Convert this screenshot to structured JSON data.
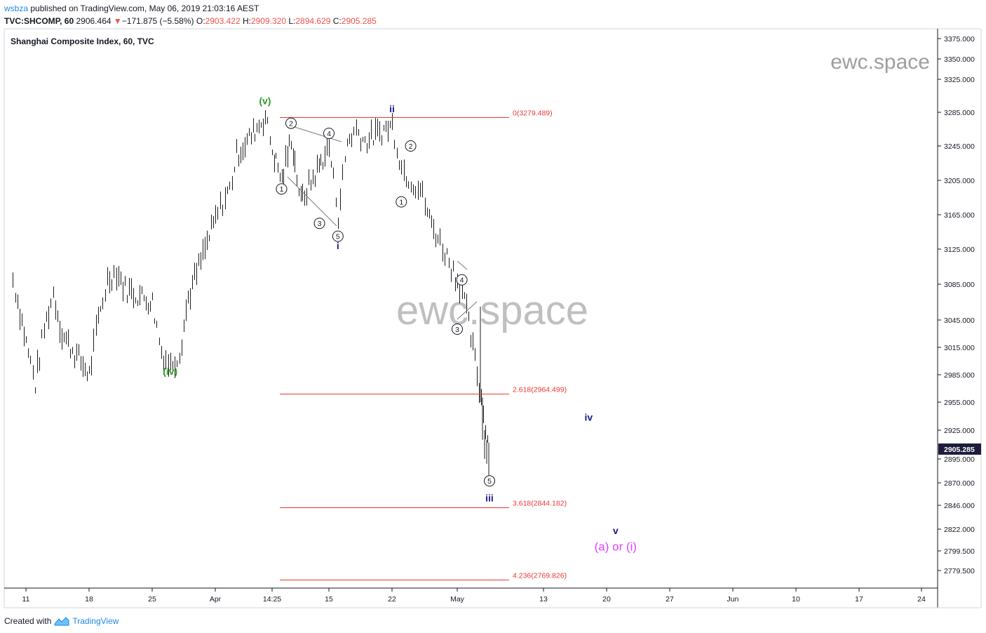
{
  "header": {
    "user": "wsbza",
    "published_text": "published on TradingView.com, May 06, 2019 21:03:16 AEST",
    "symbol": "TVC:SHCOMP, 60",
    "last": "2906.464",
    "change_arrow": "▼",
    "change": "−171.875 (−5.58%)",
    "o_label": "O:",
    "o_value": "2903.422",
    "h_label": "H:",
    "h_value": "2909.320",
    "l_label": "L:",
    "l_value": "2894.629",
    "c_label": "C:",
    "c_value": "2905.285"
  },
  "chart_title": "Shanghai Composite Index, 60, TVC",
  "watermark_small": "ewc.space",
  "watermark_large": "ewc.space",
  "footer": {
    "created_with": "Created with",
    "brand": "TradingView"
  },
  "colors": {
    "candle": "#1c1c1c",
    "fib_line": "#e53935",
    "wave_green": "#2e9e2e",
    "wave_navy": "#1a1a8c",
    "magenta": "#e040fb",
    "last_price_bg": "#1c1c3a"
  },
  "chart_data": {
    "type": "candlestick",
    "price_axis": {
      "ticks": [
        3375,
        3350,
        3325,
        3285,
        3245,
        3205,
        3165,
        3125,
        3085,
        3045,
        3015,
        2985,
        2955,
        2925,
        2895,
        2870,
        2846,
        2822,
        2799.5,
        2779.5
      ],
      "tick_labels": [
        "3375.000",
        "3350.000",
        "3325.000",
        "3285.000",
        "3245.000",
        "3205.000",
        "3165.000",
        "3125.000",
        "3085.000",
        "3045.000",
        "3015.000",
        "2985.000",
        "2955.000",
        "2925.000",
        "2895.000",
        "2870.000",
        "2846.000",
        "2822.000",
        "2799.500",
        "2779.500"
      ],
      "last_price_label": "2905.285",
      "last_price": 2905.285
    },
    "time_axis": {
      "labels": [
        "11",
        "18",
        "25",
        "Apr",
        "14:25",
        "15",
        "22",
        "May",
        "13",
        "20",
        "27",
        "Jun",
        "10",
        "17",
        "24"
      ],
      "label_dates": [
        "2019-03-11",
        "2019-03-18",
        "2019-03-25",
        "2019-04-01",
        "2019-04-09",
        "2019-04-15",
        "2019-04-22",
        "2019-04-29",
        "2019-05-13",
        "2019-05-20",
        "2019-05-27",
        "2019-06-03",
        "2019-06-10",
        "2019-06-17",
        "2019-06-24"
      ]
    },
    "price_path": [
      {
        "date": "2019-03-08",
        "price": 3090
      },
      {
        "date": "2019-03-11",
        "price": 3020
      },
      {
        "date": "2019-03-12",
        "price": 2975
      },
      {
        "date": "2019-03-13",
        "price": 3035
      },
      {
        "date": "2019-03-14",
        "price": 3075
      },
      {
        "date": "2019-03-15",
        "price": 3030
      },
      {
        "date": "2019-03-18",
        "price": 2985
      },
      {
        "date": "2019-03-19",
        "price": 3045
      },
      {
        "date": "2019-03-20",
        "price": 3090
      },
      {
        "date": "2019-03-21",
        "price": 3100
      },
      {
        "date": "2019-03-22",
        "price": 3080
      },
      {
        "date": "2019-03-25",
        "price": 3065
      },
      {
        "date": "2019-03-26",
        "price": 3010
      },
      {
        "date": "2019-03-27",
        "price": 2995
      },
      {
        "date": "2019-03-28",
        "price": 3010
      },
      {
        "date": "2019-03-29",
        "price": 3070
      },
      {
        "date": "2019-04-01",
        "price": 3160
      },
      {
        "date": "2019-04-02",
        "price": 3180
      },
      {
        "date": "2019-04-03",
        "price": 3195
      },
      {
        "date": "2019-04-04",
        "price": 3235
      },
      {
        "date": "2019-04-08",
        "price": 3280
      },
      {
        "date": "2019-04-09",
        "price": 3240
      },
      {
        "date": "2019-04-10",
        "price": 3205
      },
      {
        "date": "2019-04-11",
        "price": 3255
      },
      {
        "date": "2019-04-12",
        "price": 3180
      },
      {
        "date": "2019-04-15",
        "price": 3245
      },
      {
        "date": "2019-04-16",
        "price": 3165
      },
      {
        "date": "2019-04-17",
        "price": 3250
      },
      {
        "date": "2019-04-18",
        "price": 3265
      },
      {
        "date": "2019-04-19",
        "price": 3250
      },
      {
        "date": "2019-04-22",
        "price": 3270
      },
      {
        "date": "2019-04-23",
        "price": 3220
      },
      {
        "date": "2019-04-24",
        "price": 3205
      },
      {
        "date": "2019-04-25",
        "price": 3195
      },
      {
        "date": "2019-04-26",
        "price": 3160
      },
      {
        "date": "2019-04-29",
        "price": 3090
      },
      {
        "date": "2019-04-30",
        "price": 3080
      },
      {
        "date": "2019-05-06",
        "price": 2905
      }
    ],
    "fib_levels": [
      {
        "label": "0(3279.489)",
        "value": 3279.489
      },
      {
        "label": "2.618(2964.499)",
        "value": 2964.499
      },
      {
        "label": "3.618(2844.182)",
        "value": 2844.182
      },
      {
        "label": "4.236(2769.826)",
        "value": 2769.826
      }
    ],
    "wave_labels": [
      {
        "text": "(v)",
        "date": "2019-04-08",
        "price": 3295,
        "color": "green"
      },
      {
        "text": "(iv)",
        "date": "2019-03-27",
        "price": 2985,
        "color": "green"
      },
      {
        "text": "i",
        "date": "2019-04-16",
        "price": 3125,
        "color": "navy"
      },
      {
        "text": "ii",
        "date": "2019-04-22",
        "price": 3285,
        "color": "navy"
      },
      {
        "text": "iii",
        "date": "2019-05-06",
        "price": 2850,
        "color": "navy"
      },
      {
        "text": "iv",
        "date": "2019-05-18",
        "price": 2935,
        "color": "navy"
      },
      {
        "text": "v",
        "date": "2019-05-21",
        "price": 2817,
        "color": "navy"
      },
      {
        "text": "(a) or (i)",
        "date": "2019-05-21",
        "price": 2800,
        "color": "magenta"
      }
    ],
    "circled_labels": [
      {
        "text": "1",
        "date": "2019-04-10",
        "price": 3195
      },
      {
        "text": "2",
        "date": "2019-04-11",
        "price": 3272
      },
      {
        "text": "3",
        "date": "2019-04-14",
        "price": 3155
      },
      {
        "text": "4",
        "date": "2019-04-15",
        "price": 3260
      },
      {
        "text": "5",
        "date": "2019-04-16",
        "price": 3140
      },
      {
        "text": "1",
        "date": "2019-04-23",
        "price": 3180
      },
      {
        "text": "2",
        "date": "2019-04-24",
        "price": 3245
      },
      {
        "text": "3",
        "date": "2019-04-29",
        "price": 3035
      },
      {
        "text": "4",
        "date": "2019-04-30",
        "price": 3090
      },
      {
        "text": "5",
        "date": "2019-05-06",
        "price": 2872
      }
    ]
  }
}
